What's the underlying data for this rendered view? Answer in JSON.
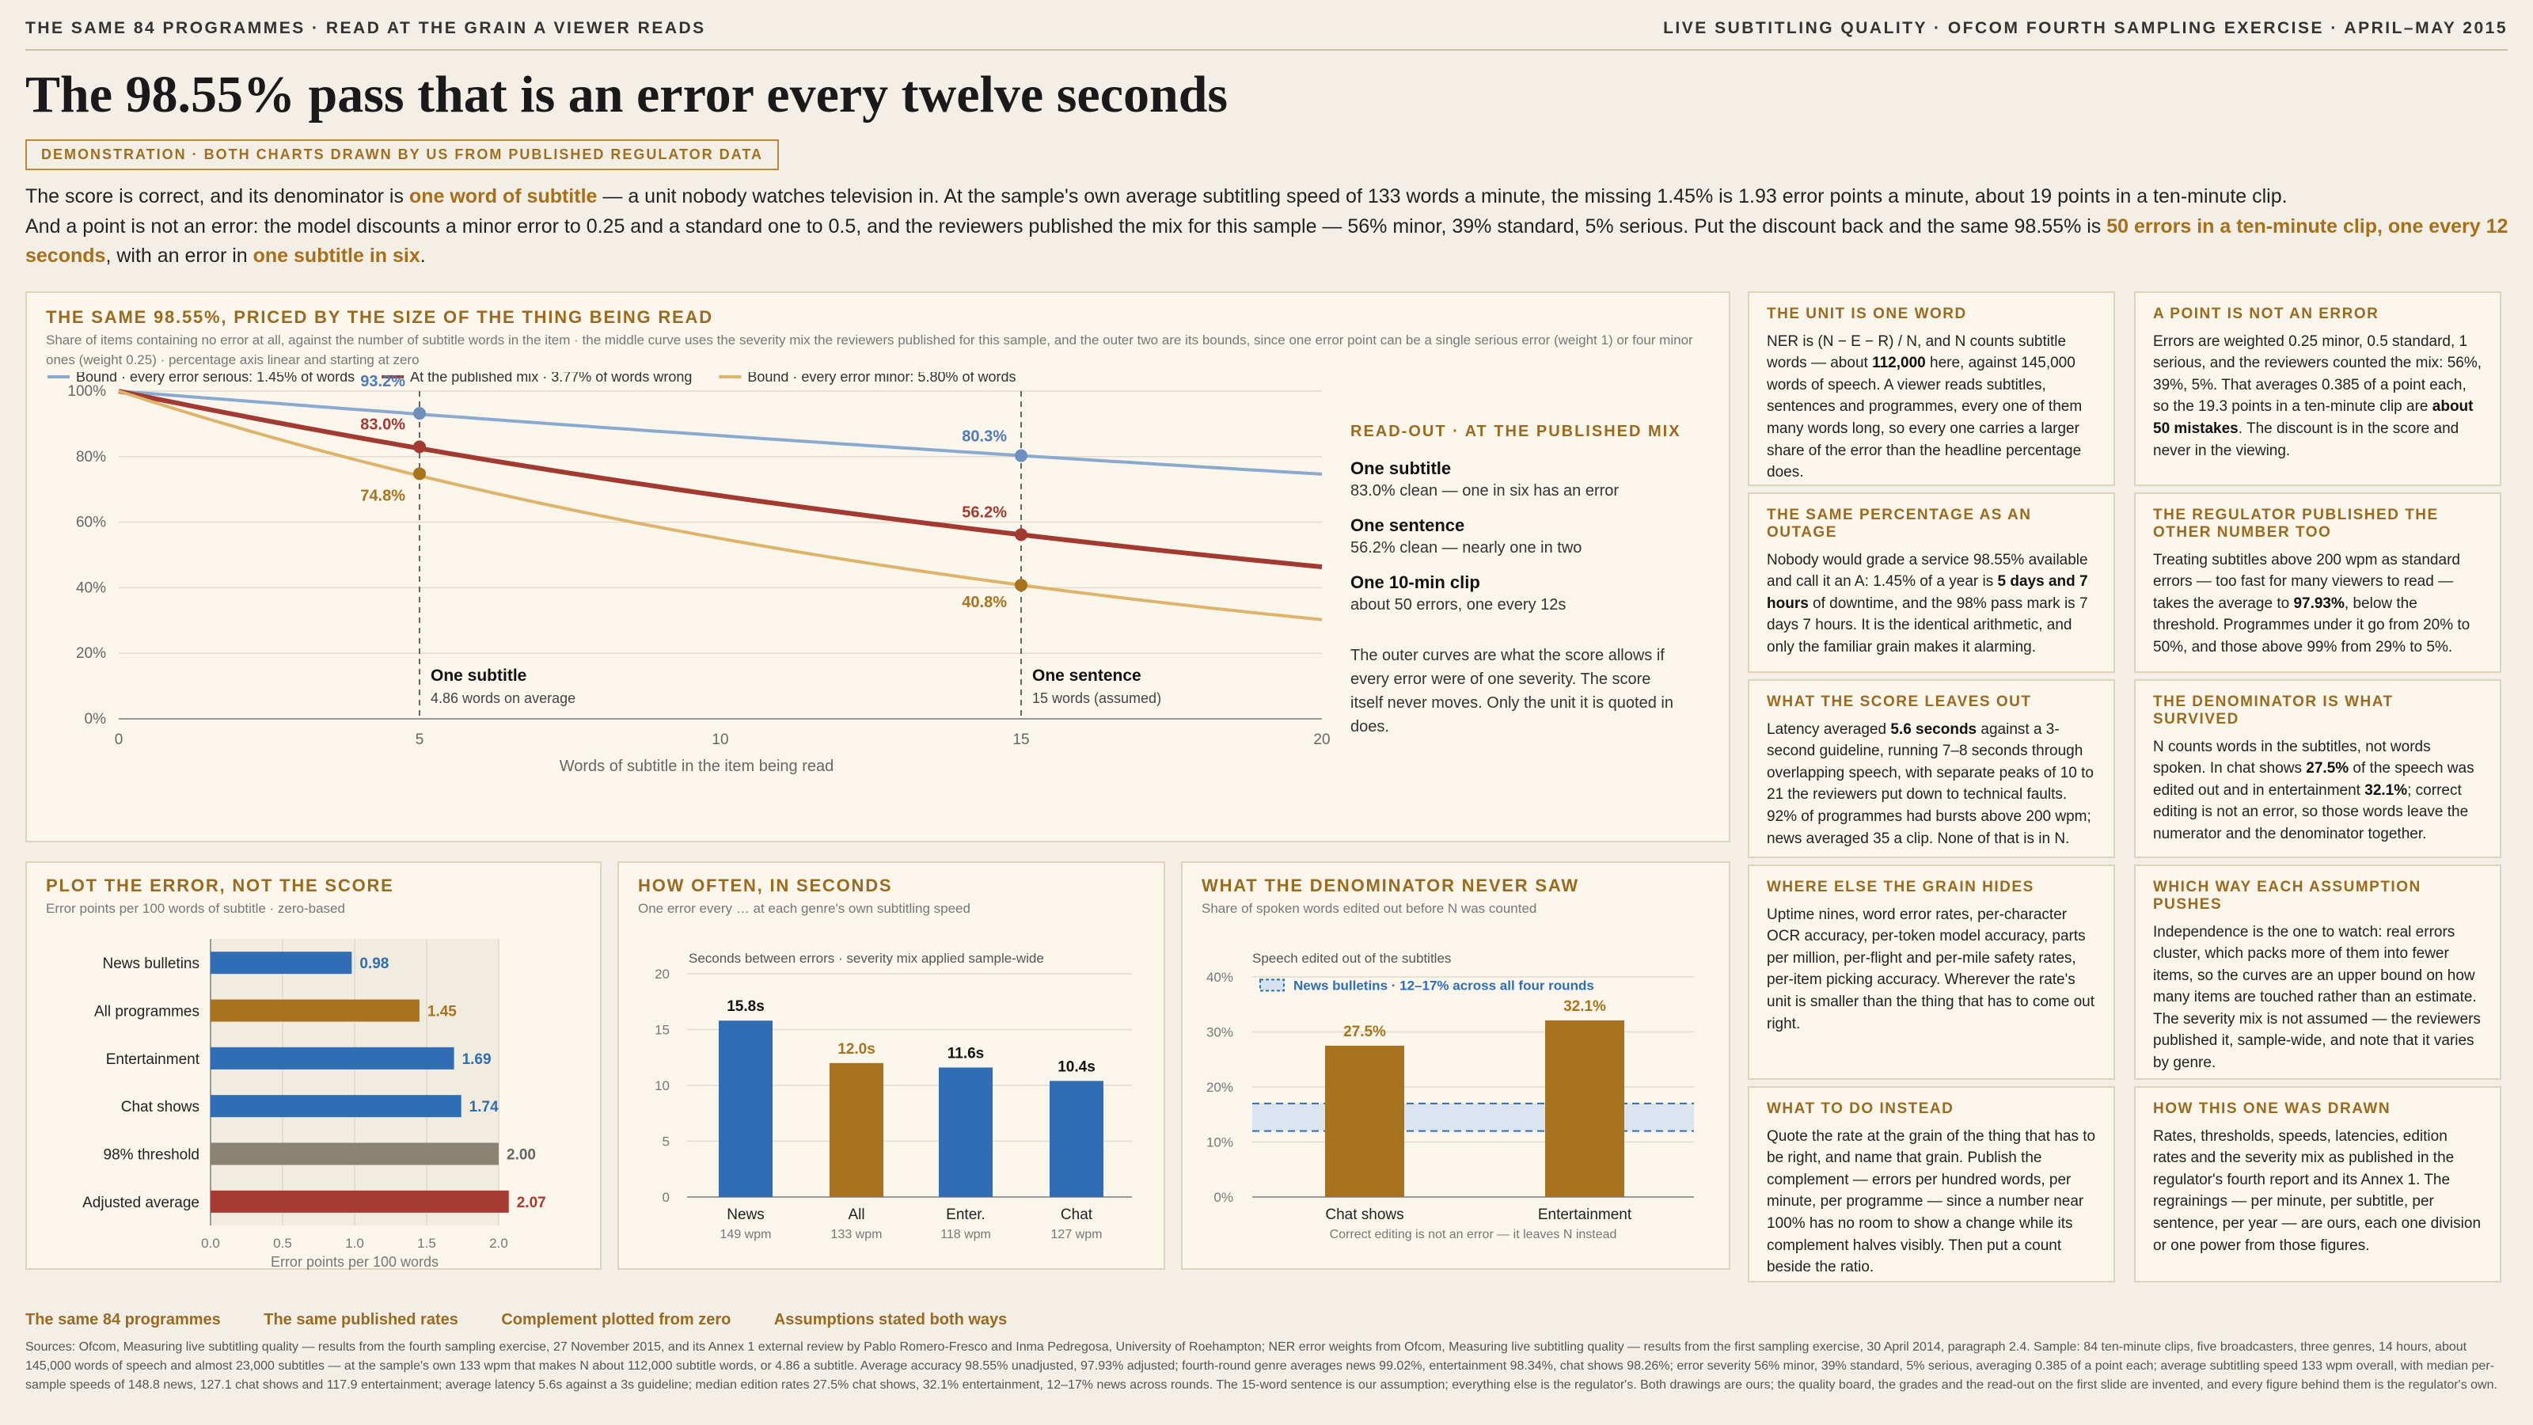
{
  "header": {
    "left": "THE SAME 84 PROGRAMMES · READ AT THE GRAIN A VIEWER READS",
    "right": "LIVE SUBTITLING QUALITY · OFCOM FOURTH SAMPLING EXERCISE · APRIL–MAY 2015"
  },
  "title": "The 98.55% pass that is an error every twelve seconds",
  "tag": "DEMONSTRATION · BOTH CHARTS DRAWN BY US FROM PUBLISHED REGULATOR DATA",
  "lede": {
    "p1a": "The score is correct, and its denominator is ",
    "p1b": "one word of subtitle",
    "p1c": " — a unit nobody watches television in. At the sample's own average subtitling speed of 133 words a minute, the missing 1.45% is 1.93 error points a minute, about 19 points in a ten-minute clip.",
    "p2a": "And a point is not an error: the model discounts a minor error to 0.25 and a standard one to 0.5, and the reviewers published the mix for this sample — 56% minor, 39% standard, 5% serious. Put the discount back and the same 98.55% is ",
    "p2b": "50 errors in a ten-minute clip, one every 12 seconds",
    "p2c": ", with an error in ",
    "p2d": "one subtitle in six",
    "p2e": "."
  },
  "main_panel": {
    "title": "THE SAME 98.55%, PRICED BY THE SIZE OF THE THING BEING READ",
    "subtitle": "Share of items containing no error at all, against the number of subtitle words in the item · the middle curve uses the severity mix the reviewers published for this sample, and the outer two are its bounds, since one error point can be a single serious error (weight 1) or four minor ones (weight 0.25) · percentage axis linear and starting at zero",
    "readout": {
      "title": "READ-OUT · AT THE PUBLISHED MIX",
      "items": [
        {
          "h": "One subtitle",
          "p": "83.0% clean — one in six has an error"
        },
        {
          "h": "One sentence",
          "p": "56.2% clean — nearly one in two"
        },
        {
          "h": "One 10-min clip",
          "p": "about 50 errors, one every 12s"
        }
      ],
      "note": "The outer curves are what the score allows if every error were of one severity. The score itself never moves. Only the unit it is quoted in does."
    }
  },
  "cards": [
    {
      "t": "THE UNIT IS ONE WORD",
      "b": "NER is (N − E − R) / N, and N counts subtitle words — about <b>112,000</b> here, against 145,000 words of speech. A viewer reads subtitles, sentences and programmes, every one of them many words long, so every one carries a larger share of the error than the headline percentage does."
    },
    {
      "t": "A POINT IS NOT AN ERROR",
      "b": "Errors are weighted 0.25 minor, 0.5 standard, 1 serious, and the reviewers counted the mix: 56%, 39%, 5%. That averages 0.385 of a point each, so the 19.3 points in a ten-minute clip are <b>about 50 mistakes</b>. The discount is in the score and never in the viewing."
    },
    {
      "t": "THE SAME PERCENTAGE AS AN OUTAGE",
      "b": "Nobody would grade a service 98.55% available and call it an A: 1.45% of a year is <b>5 days and 7 hours</b> of downtime, and the 98% pass mark is 7 days 7 hours. It is the identical arithmetic, and only the familiar grain makes it alarming."
    },
    {
      "t": "THE REGULATOR PUBLISHED THE OTHER NUMBER TOO",
      "b": "Treating subtitles above 200 wpm as standard errors — too fast for many viewers to read — takes the average to <b>97.93%</b>, below the threshold. Programmes under it go from 20% to 50%, and those above 99% from 29% to 5%."
    },
    {
      "t": "WHAT THE SCORE LEAVES OUT",
      "b": "Latency averaged <b>5.6 seconds</b> against a 3-second guideline, running 7–8 seconds through overlapping speech, with separate peaks of 10 to 21 the reviewers put down to technical faults. 92% of programmes had bursts above 200 wpm; news averaged 35 a clip. None of that is in N."
    },
    {
      "t": "THE DENOMINATOR IS WHAT SURVIVED",
      "b": "N counts words in the subtitles, not words spoken. In chat shows <b>27.5%</b> of the speech was edited out and in entertainment <b>32.1%</b>; correct editing is not an error, so those words leave the numerator and the denominator together."
    },
    {
      "t": "WHERE ELSE THE GRAIN HIDES",
      "b": "Uptime nines, word error rates, per-character OCR accuracy, per-token model accuracy, parts per million, per-flight and per-mile safety rates, per-item picking accuracy. Wherever the rate's unit is smaller than the thing that has to come out right."
    },
    {
      "t": "WHICH WAY EACH ASSUMPTION PUSHES",
      "b": "Independence is the one to watch: real errors cluster, which packs more of them into fewer items, so the curves are an upper bound on how many items are touched rather than an estimate. The severity mix is not assumed — the reviewers published it, sample-wide, and note that it varies by genre."
    },
    {
      "t": "WHAT TO DO INSTEAD",
      "b": "Quote the rate at the grain of the thing that has to be right, and name that grain. Publish the complement — errors per hundred words, per minute, per programme — since a number near 100% has no room to show a change while its complement halves visibly. Then put a count beside the ratio."
    },
    {
      "t": "HOW THIS ONE WAS DRAWN",
      "b": "Rates, thresholds, speeds, latencies, edition rates and the severity mix as published in the regulator's fourth report and its Annex 1. The regrainings — per minute, per subtitle, per sentence, per year — are ours, each one division or one power from those figures."
    }
  ],
  "footer": {
    "links": [
      "The same 84 programmes",
      "The same published rates",
      "Complement plotted from zero",
      "Assumptions stated both ways"
    ],
    "sources": "Sources: Ofcom, Measuring live subtitling quality — results from the fourth sampling exercise, 27 November 2015, and its Annex 1 external review by Pablo Romero-Fresco and Inma Pedregosa, University of Roehampton; NER error weights from Ofcom, Measuring live subtitling quality — results from the first sampling exercise, 30 April 2014, paragraph 2.4. Sample: 84 ten-minute clips, five broadcasters, three genres, 14 hours, about 145,000 words of speech and almost 23,000 subtitles — at the sample's own 133 wpm that makes N about 112,000 subtitle words, or 4.86 a subtitle. Average accuracy 98.55% unadjusted, 97.93% adjusted; fourth-round genre averages news 99.02%, entertainment 98.34%, chat shows 98.26%; error severity 56% minor, 39% standard, 5% serious, averaging 0.385 of a point each; average subtitling speed 133 wpm overall, with median per-sample speeds of 148.8 news, 127.1 chat shows and 117.9 entertainment; average latency 5.6s against a 3s guideline; median edition rates 27.5% chat shows, 32.1% entertainment, 12–17% news across rounds. The 15-word sentence is our assumption; everything else is the regulator's. Both drawings are ours; the quality board, the grades and the read-out on the first slide are invented, and every figure behind them is the regulator's own."
  },
  "chart_data": [
    {
      "type": "line",
      "title": "THE SAME 98.55%, PRICED BY THE SIZE OF THE THING BEING READ",
      "xlabel": "Words of subtitle in the item being read",
      "ylabel": "",
      "xlim": [
        0,
        20
      ],
      "ylim": [
        0,
        100
      ],
      "xticks": [
        0,
        5,
        10,
        15,
        20
      ],
      "yticks": [
        "0%",
        "20%",
        "40%",
        "60%",
        "80%",
        "100%"
      ],
      "grid": "horizontal",
      "legend": "top-left",
      "series": [
        {
          "name": "Bound · every error serious: 1.45% of words",
          "error_rate": 0.0145,
          "color": "#8aa9cf",
          "points": [
            [
              0,
              100
            ],
            [
              5,
              93.2
            ],
            [
              15,
              80.3
            ],
            [
              20,
              74.7
            ]
          ]
        },
        {
          "name": "At the published mix · 3.77% of words wrong",
          "error_rate": 0.0377,
          "color": "#a23a32",
          "points": [
            [
              0,
              100
            ],
            [
              5,
              83.0
            ],
            [
              15,
              56.2
            ],
            [
              20,
              46.3
            ]
          ]
        },
        {
          "name": "Bound · every error minor: 5.80% of words",
          "error_rate": 0.058,
          "color": "#ddb46a",
          "points": [
            [
              0,
              100
            ],
            [
              5,
              74.8
            ],
            [
              15,
              40.8
            ],
            [
              20,
              30.3
            ]
          ]
        }
      ],
      "annotations": [
        {
          "x": 5,
          "label": "One subtitle",
          "sub": "4.86 words on average",
          "values": [
            "93.2%",
            "83.0%",
            "74.8%"
          ]
        },
        {
          "x": 15,
          "label": "One sentence",
          "sub": "15 words (assumed)",
          "values": [
            "80.3%",
            "56.2%",
            "40.8%"
          ]
        }
      ]
    },
    {
      "type": "bar",
      "orientation": "horizontal",
      "title": "PLOT THE ERROR, NOT THE SCORE",
      "subtitle": "Error points per 100 words of subtitle · zero-based",
      "xlabel": "Error points per 100 words",
      "xlim": [
        0,
        2.0
      ],
      "xticks": [
        "0.0",
        "0.5",
        "1.0",
        "1.5",
        "2.0"
      ],
      "categories": [
        "News bulletins",
        "All programmes",
        "Entertainment",
        "Chat shows",
        "98% threshold",
        "Adjusted average"
      ],
      "values": [
        0.98,
        1.45,
        1.69,
        1.74,
        2.0,
        2.07
      ],
      "labels": [
        "0.98",
        "1.45",
        "1.69",
        "1.74",
        "2.00",
        "2.07"
      ],
      "colors": [
        "#2f6db5",
        "#a7731e",
        "#2f6db5",
        "#2f6db5",
        "#8a8272",
        "#a63b33"
      ]
    },
    {
      "type": "bar",
      "title": "HOW OFTEN, IN SECONDS",
      "subtitle": "One error every … at each genre's own subtitling speed",
      "ylabel": "Seconds between errors · severity mix applied sample-wide",
      "ylim": [
        0,
        20
      ],
      "yticks": [
        "0",
        "5",
        "10",
        "15",
        "20"
      ],
      "categories": [
        "News",
        "All",
        "Enter.",
        "Chat"
      ],
      "sublabels": [
        "149 wpm",
        "133 wpm",
        "118 wpm",
        "127 wpm"
      ],
      "values": [
        15.8,
        12.0,
        11.6,
        10.4
      ],
      "labels": [
        "15.8s",
        "12.0s",
        "11.6s",
        "10.4s"
      ],
      "colors": [
        "#2f6db5",
        "#a7731e",
        "#2f6db5",
        "#2f6db5"
      ]
    },
    {
      "type": "bar",
      "title": "WHAT THE DENOMINATOR NEVER SAW",
      "subtitle": "Share of spoken words edited out before N was counted",
      "ylabel": "Speech edited out of the subtitles",
      "ylim": [
        0,
        40
      ],
      "yticks": [
        "0%",
        "10%",
        "20%",
        "30%",
        "40%"
      ],
      "categories": [
        "Chat shows",
        "Entertainment"
      ],
      "values": [
        27.5,
        32.1
      ],
      "labels": [
        "27.5%",
        "32.1%"
      ],
      "band": {
        "label": "News bulletins · 12–17% across all four rounds",
        "low": 12,
        "high": 17
      },
      "xlabel": "Correct editing is not an error — it leaves N instead",
      "colors": [
        "#a7731e",
        "#a7731e"
      ]
    }
  ]
}
